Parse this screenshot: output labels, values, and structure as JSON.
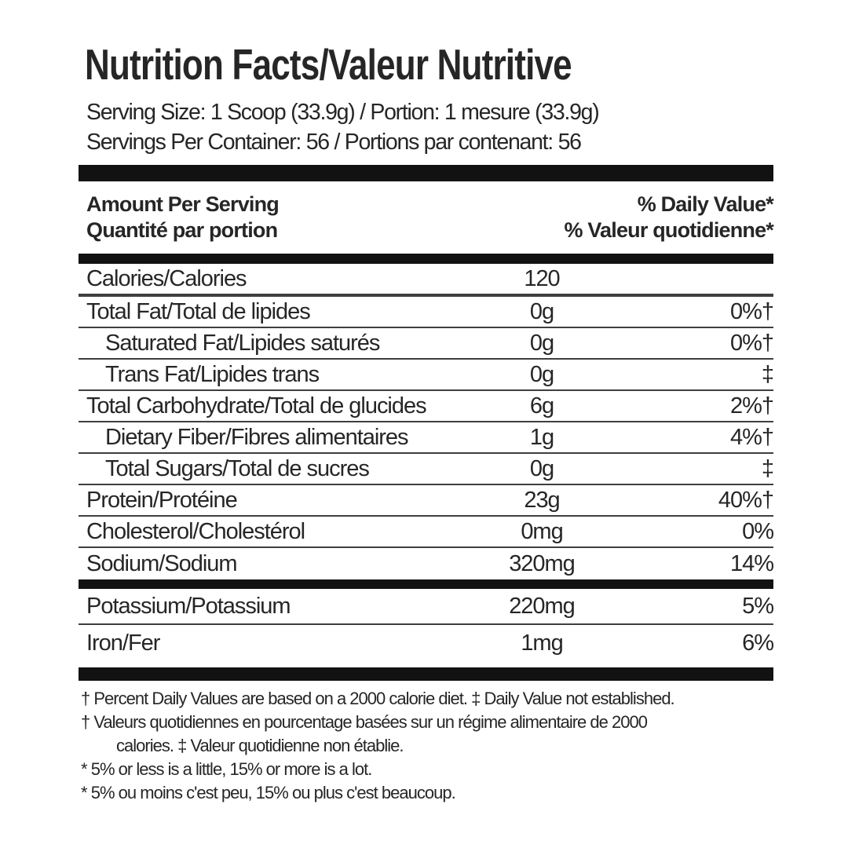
{
  "label": {
    "title": "Nutrition Facts/Valeur Nutritive",
    "serving_size": "Serving Size: 1 Scoop (33.9g) / Portion: 1 mesure (33.9g)",
    "servings_per_container": "Servings Per Container: 56 / Portions par contenant: 56",
    "column_headers": {
      "amount_per_serving_en": "Amount Per Serving",
      "amount_per_serving_fr": "Quantité par portion",
      "daily_value_en": "% Daily Value*",
      "daily_value_fr": "% Valeur quotidienne*"
    },
    "main_rows": [
      {
        "name": "Calories/Calories",
        "amount": "120",
        "daily_value": "",
        "indent": false
      },
      {
        "name": "Total Fat/Total de lipides",
        "amount": "0g",
        "daily_value": "0%†",
        "indent": false
      },
      {
        "name": "Saturated Fat/Lipides saturés",
        "amount": "0g",
        "daily_value": "0%†",
        "indent": true
      },
      {
        "name": "Trans Fat/Lipides trans",
        "amount": "0g",
        "daily_value": "‡",
        "indent": true
      },
      {
        "name": "Total Carbohydrate/Total de glucides",
        "amount": "6g",
        "daily_value": "2%†",
        "indent": false
      },
      {
        "name": "Dietary Fiber/Fibres alimentaires",
        "amount": "1g",
        "daily_value": "4%†",
        "indent": true
      },
      {
        "name": "Total Sugars/Total de sucres",
        "amount": "0g",
        "daily_value": "‡",
        "indent": true
      },
      {
        "name": "Protein/Protéine",
        "amount": "23g",
        "daily_value": "40%†",
        "indent": false
      },
      {
        "name": "Cholesterol/Cholestérol",
        "amount": "0mg",
        "daily_value": "0%",
        "indent": false
      },
      {
        "name": "Sodium/Sodium",
        "amount": "320mg",
        "daily_value": "14%",
        "indent": false
      }
    ],
    "mineral_rows": [
      {
        "name": "Potassium/Potassium",
        "amount": "220mg",
        "daily_value": "5%",
        "indent": false
      },
      {
        "name": "Iron/Fer",
        "amount": "1mg",
        "daily_value": "6%",
        "indent": false
      }
    ],
    "footnotes": [
      "† Percent Daily Values are based on a 2000 calorie diet. ‡ Daily Value not established.",
      "† Valeurs quotidiennes en pourcentage basées sur un régime alimentaire de 2000 calories. ‡ Valeur quotidienne non établie.",
      "* 5% or less is a little, 15% or more is a lot.",
      "* 5% ou moins c'est peu, 15% ou plus c'est beaucoup."
    ],
    "colors": {
      "text": "#262626",
      "bar": "#121212",
      "rule": "#3f3f3f"
    }
  }
}
